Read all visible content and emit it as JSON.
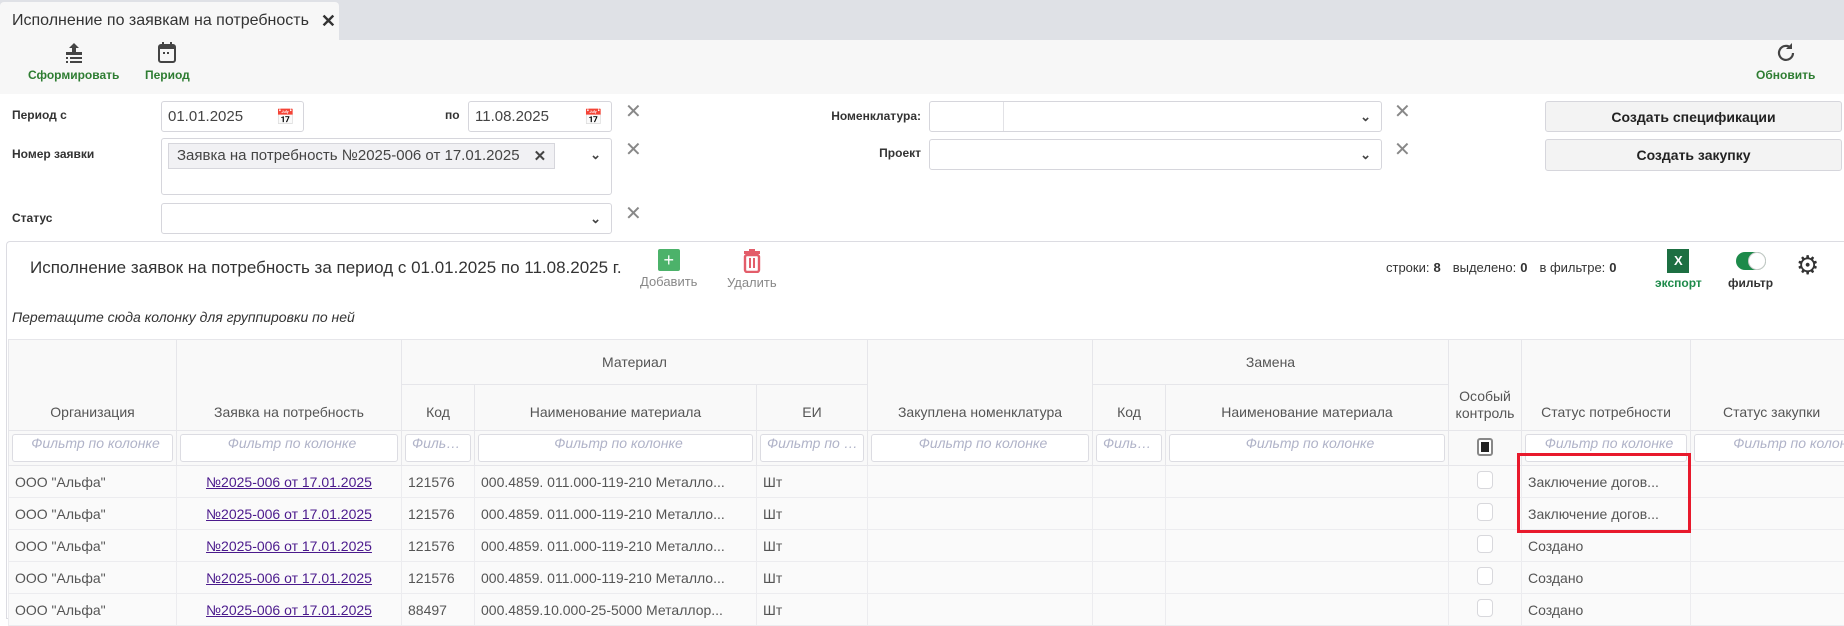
{
  "tab": {
    "title": "Исполнение по заявкам на потребность"
  },
  "toolbar": {
    "generate": "Сформировать",
    "period": "Период",
    "refresh": "Обновить"
  },
  "filters": {
    "period_from_label": "Период с",
    "period_from": "01.01.2025",
    "period_to_label": "по",
    "period_to": "11.08.2025",
    "request_label": "Номер заявки",
    "request_tag": "Заявка на потребность №2025-006 от 17.01.2025",
    "status_label": "Статус",
    "status": "",
    "nomenclature_label": "Номенклатура:",
    "nomenclature": "",
    "project_label": "Проект",
    "project": ""
  },
  "actions": {
    "create_spec": "Создать спецификации",
    "create_purchase": "Создать закупку"
  },
  "grid": {
    "title": "Исполнение заявок на потребность за период с 01.01.2025 по 11.08.2025 г.",
    "add": "Добавить",
    "delete": "Удалить",
    "rows_label": "строки:",
    "rows": "8",
    "selected_label": "выделено:",
    "selected": "0",
    "in_filter_label": "в фильтре:",
    "in_filter": "0",
    "export": "экспорт",
    "filter": "фильтр",
    "filter_on": true,
    "group_hint": "Перетащите сюда колонку для группировки по ней",
    "groups": {
      "material": "Материал",
      "replacement": "Замена"
    },
    "columns": {
      "org": "Организация",
      "request": "Заявка на потребность",
      "code": "Код",
      "name": "Наименование материала",
      "unit": "ЕИ",
      "bought": "Закуплена номенклатура",
      "r_code": "Код",
      "r_name": "Наименование материала",
      "special": "Особый контроль",
      "need_status": "Статус потребности",
      "purchase_status": "Статус закупки"
    },
    "filter_placeholder": "Фильтр по колонке",
    "rows_data": [
      {
        "org": "ООО \"Альфа\"",
        "request": "№2025-006 от 17.01.2025",
        "code": "121576",
        "name": "000.4859. 011.000-119-210 Металло...",
        "unit": "Шт",
        "bought": "",
        "r_code": "",
        "r_name": "",
        "special": false,
        "need_status": "Заключение догов...",
        "purchase_status": ""
      },
      {
        "org": "ООО \"Альфа\"",
        "request": "№2025-006 от 17.01.2025",
        "code": "121576",
        "name": "000.4859. 011.000-119-210 Металло...",
        "unit": "Шт",
        "bought": "",
        "r_code": "",
        "r_name": "",
        "special": false,
        "need_status": "Заключение догов...",
        "purchase_status": ""
      },
      {
        "org": "ООО \"Альфа\"",
        "request": "№2025-006 от 17.01.2025",
        "code": "121576",
        "name": "000.4859. 011.000-119-210 Металло...",
        "unit": "Шт",
        "bought": "",
        "r_code": "",
        "r_name": "",
        "special": false,
        "need_status": "Создано",
        "purchase_status": ""
      },
      {
        "org": "ООО \"Альфа\"",
        "request": "№2025-006 от 17.01.2025",
        "code": "121576",
        "name": "000.4859. 011.000-119-210 Металло...",
        "unit": "Шт",
        "bought": "",
        "r_code": "",
        "r_name": "",
        "special": false,
        "need_status": "Создано",
        "purchase_status": ""
      },
      {
        "org": "ООО \"Альфа\"",
        "request": "№2025-006 от 17.01.2025",
        "code": "88497",
        "name": "000.4859.10.000-25-5000 Металлор...",
        "unit": "Шт",
        "bought": "",
        "r_code": "",
        "r_name": "",
        "special": false,
        "need_status": "Создано",
        "purchase_status": ""
      }
    ]
  },
  "colors": {
    "accent_green": "#2e7d32",
    "link": "#4b1a8c",
    "highlight": "#e8192c",
    "excel": "#1d6f42",
    "delete": "#e35d6a"
  }
}
